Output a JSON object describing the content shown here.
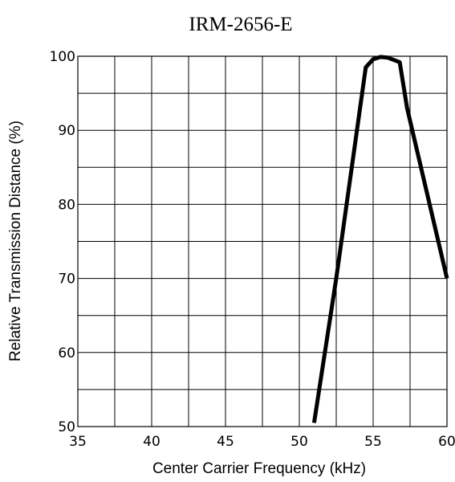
{
  "chart_data": {
    "type": "line",
    "title": "IRM-2656-E",
    "xlabel": "Center Carrier Frequency  (kHz)",
    "ylabel": "Relative Transmission Distance (%)",
    "xlim": [
      35,
      60
    ],
    "ylim": [
      50,
      100
    ],
    "xticks": [
      35,
      40,
      45,
      50,
      55,
      60
    ],
    "yticks": [
      50,
      60,
      70,
      80,
      90,
      100
    ],
    "grid": true,
    "series": [
      {
        "color": "#000000",
        "x": [
          51.0,
          52.5,
          54.5,
          55.0,
          55.5,
          56.0,
          56.8,
          57.3,
          60.0
        ],
        "y": [
          50.5,
          70.0,
          98.5,
          99.6,
          99.9,
          99.8,
          99.2,
          93.0,
          70.0
        ]
      }
    ]
  }
}
